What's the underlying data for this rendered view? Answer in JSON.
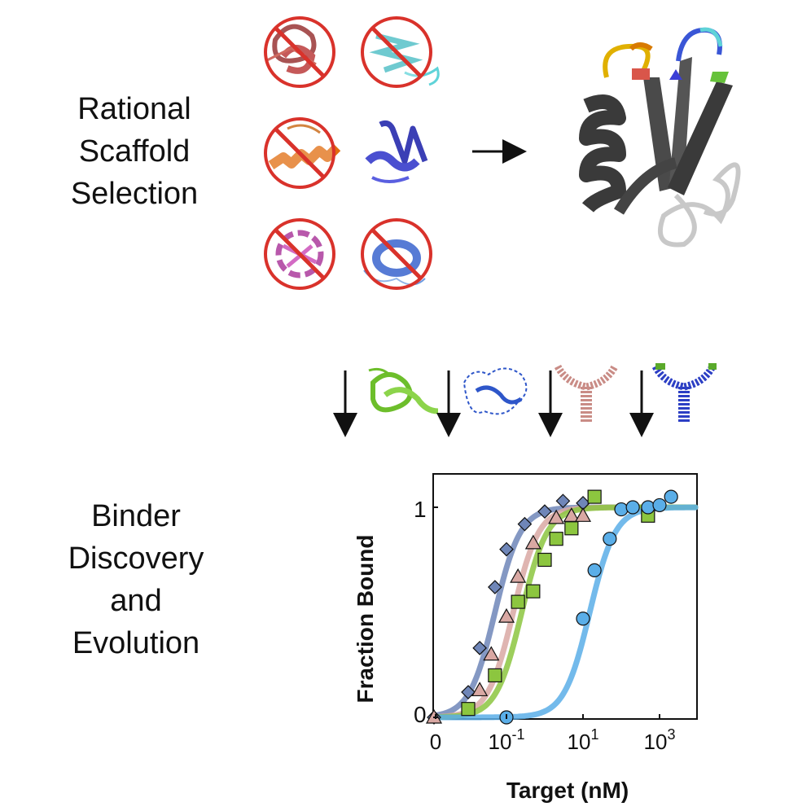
{
  "section_labels": {
    "top": [
      "Rational",
      "Scaffold",
      "Selection"
    ],
    "bottom": [
      "Binder",
      "Discovery",
      "and",
      "Evolution"
    ]
  },
  "colors": {
    "prohibit_red": "#d9322b",
    "series_blue_gray": "#6f86b8",
    "series_pink": "#d9a8a3",
    "series_green": "#8cc63f",
    "series_lightblue": "#5aaee8"
  },
  "chart_data": {
    "type": "scatter",
    "xlabel": "Target (nM)",
    "ylabel": "Fraction Bound",
    "x_tick_labels": [
      "0",
      "10-1",
      "101",
      "103"
    ],
    "x_tick_values": [
      0,
      0.1,
      10,
      1000
    ],
    "y_tick_labels": [
      "0",
      "1"
    ],
    "ylim": [
      0,
      1.1
    ],
    "xscale": "log",
    "series": [
      {
        "marker": "diamond",
        "color": "#6f86b8",
        "points": [
          [
            0.001,
            0
          ],
          [
            0.01,
            0.12
          ],
          [
            0.02,
            0.33
          ],
          [
            0.05,
            0.62
          ],
          [
            0.1,
            0.8
          ],
          [
            0.3,
            0.92
          ],
          [
            1,
            0.98
          ],
          [
            3,
            1.03
          ],
          [
            10,
            1.02
          ]
        ],
        "kd": 0.05
      },
      {
        "marker": "triangle",
        "color": "#d9a8a3",
        "points": [
          [
            0.001,
            0
          ],
          [
            0.02,
            0.13
          ],
          [
            0.04,
            0.3
          ],
          [
            0.1,
            0.48
          ],
          [
            0.2,
            0.67
          ],
          [
            0.5,
            0.83
          ],
          [
            2,
            0.95
          ],
          [
            5,
            0.96
          ],
          [
            10,
            0.96
          ]
        ],
        "kd": 0.15
      },
      {
        "marker": "square",
        "color": "#8cc63f",
        "points": [
          [
            0.01,
            0.04
          ],
          [
            0.05,
            0.2
          ],
          [
            0.2,
            0.55
          ],
          [
            0.5,
            0.6
          ],
          [
            1,
            0.75
          ],
          [
            2,
            0.85
          ],
          [
            5,
            0.9
          ],
          [
            20,
            1.05
          ],
          [
            500,
            0.96
          ]
        ],
        "kd": 0.25
      },
      {
        "marker": "circle",
        "color": "#5aaee8",
        "points": [
          [
            0.1,
            0
          ],
          [
            10,
            0.47
          ],
          [
            20,
            0.7
          ],
          [
            50,
            0.85
          ],
          [
            100,
            0.99
          ],
          [
            200,
            1.0
          ],
          [
            500,
            1.0
          ],
          [
            1000,
            1.01
          ],
          [
            2000,
            1.05
          ]
        ],
        "kd": 15
      }
    ]
  }
}
